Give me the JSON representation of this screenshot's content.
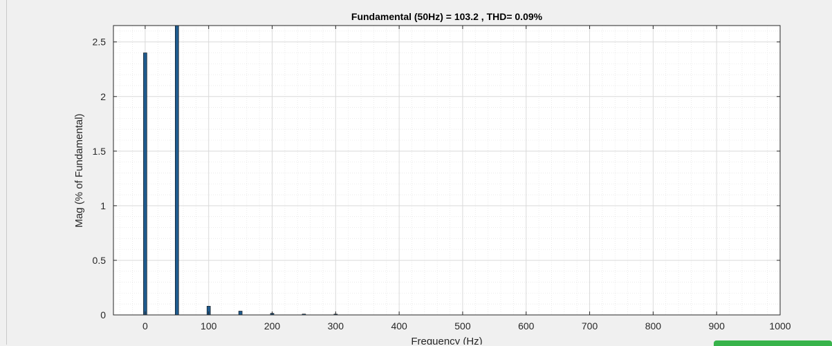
{
  "chart_data": {
    "type": "bar",
    "title": "Fundamental (50Hz) = 103.2 , THD= 0.09%",
    "xlabel": "Frequency (Hz)",
    "ylabel": "Mag (% of Fundamental)",
    "xlim": [
      -50,
      1000
    ],
    "ylim": [
      0,
      2.65
    ],
    "xticks": [
      "0",
      "100",
      "200",
      "300",
      "400",
      "500",
      "600",
      "700",
      "800",
      "900",
      "1000"
    ],
    "yticks": [
      "0",
      "0.5",
      "1",
      "1.5",
      "2",
      "2.5"
    ],
    "grid": true,
    "minor_grid": true,
    "bar_color": "#1f5a8c",
    "x": [
      0,
      50,
      100,
      150,
      200,
      250,
      300
    ],
    "values": [
      2.4,
      2.65,
      0.08,
      0.035,
      0.015,
      0.008,
      0.005
    ]
  }
}
